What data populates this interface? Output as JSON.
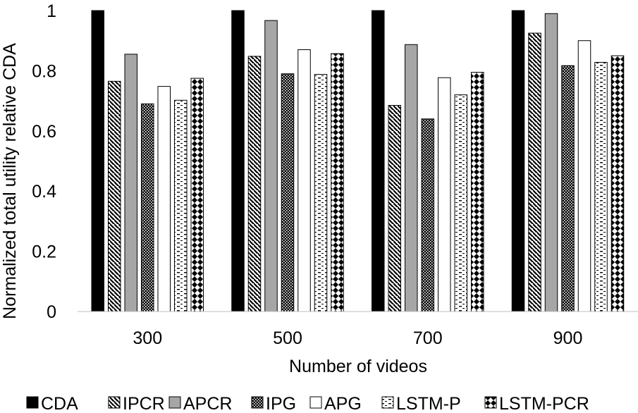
{
  "chart_data": {
    "type": "bar",
    "xlabel": "Number of videos",
    "ylabel": "Normalized total utility relative CDA",
    "categories": [
      "300",
      "500",
      "700",
      "900"
    ],
    "ylim": [
      0,
      1
    ],
    "yticks": [
      "0",
      "0.2",
      "0.4",
      "0.6",
      "0.8",
      "1"
    ],
    "grid": false,
    "legend_position": "bottom",
    "series": [
      {
        "name": "CDA",
        "values": [
          1.0,
          1.0,
          1.0,
          1.0
        ],
        "pattern": "solid-black"
      },
      {
        "name": "IPCR",
        "values": [
          0.765,
          0.848,
          0.685,
          0.925
        ],
        "pattern": "diagonal-hatch"
      },
      {
        "name": "APCR",
        "values": [
          0.855,
          0.967,
          0.887,
          0.99
        ],
        "pattern": "solid-gray"
      },
      {
        "name": "IPG",
        "values": [
          0.69,
          0.79,
          0.64,
          0.817
        ],
        "pattern": "dense-checker"
      },
      {
        "name": "APG",
        "values": [
          0.748,
          0.87,
          0.777,
          0.9
        ],
        "pattern": "white"
      },
      {
        "name": "LSTM-P",
        "values": [
          0.702,
          0.788,
          0.72,
          0.828
        ],
        "pattern": "dashes"
      },
      {
        "name": "LSTM-PCR",
        "values": [
          0.775,
          0.857,
          0.795,
          0.85
        ],
        "pattern": "diamonds"
      }
    ],
    "colors": {
      "black": "#000000",
      "gray": "#a6a6a6",
      "white": "#ffffff"
    }
  }
}
